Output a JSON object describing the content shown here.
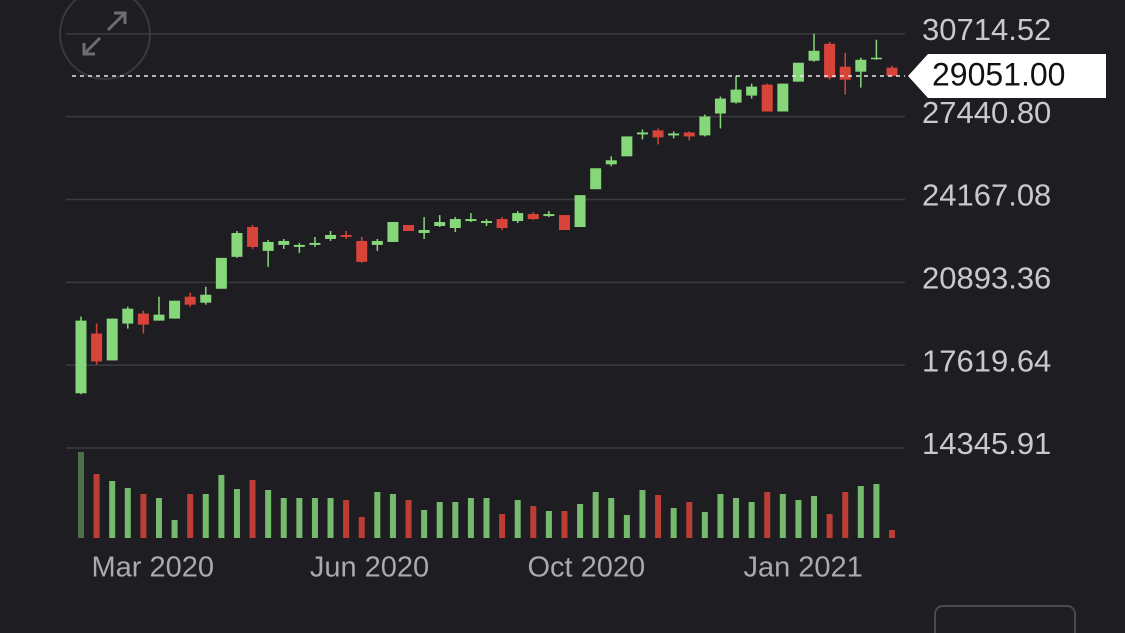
{
  "chart_data": {
    "type": "candlestick",
    "ylim": [
      14345.91,
      32052.4
    ],
    "yticks": [
      14345.91,
      17619.64,
      20893.36,
      24167.08,
      {
        "value": 27440.8,
        "label": "27440.80"
      },
      30714.52
    ],
    "grid": true,
    "last_price": {
      "value": 29051,
      "label": "29051.00"
    },
    "xlim": [
      -0.5,
      52.5
    ],
    "xticks": [
      {
        "value": 4.6,
        "label": "Mar 2020"
      },
      {
        "value": 18.5,
        "label": "Jun 2020"
      },
      {
        "value": 32.4,
        "label": "Oct 2020"
      },
      {
        "value": 46.3,
        "label": "Jan 2021"
      }
    ],
    "up_color": "#86d67a",
    "down_color": "#d8433a",
    "open": [
      16509,
      18870,
      17807,
      19263,
      19657,
      19381,
      19460,
      20326,
      20090,
      20640,
      21900,
      23080,
      22136,
      22372,
      22293,
      22372,
      22608,
      22765,
      22529,
      22372,
      22490,
      23159,
      22844,
      23120,
      23041,
      23316,
      23238,
      23395,
      23316,
      23592,
      23513,
      23552,
      23080,
      24575,
      25559,
      25874,
      26740,
      26897,
      26700,
      26818,
      26700,
      27566,
      27999,
      28274,
      28707,
      27645,
      28825,
      29652,
      30321,
      29416,
      29219,
      29730,
      29376
    ],
    "high": [
      19539,
      19263,
      19460,
      19932,
      19775,
      20326,
      20168,
      20483,
      20719,
      21860,
      22923,
      23159,
      22569,
      22608,
      22451,
      22687,
      22923,
      22923,
      22687,
      22608,
      23277,
      23159,
      23474,
      23552,
      23474,
      23631,
      23395,
      23474,
      23710,
      23670,
      23710,
      23552,
      24339,
      25402,
      25874,
      26661,
      26936,
      26976,
      26858,
      26858,
      27527,
      28235,
      29061,
      28747,
      28747,
      28747,
      29573,
      30714,
      30399,
      29966,
      29770,
      30478,
      29455
    ],
    "low": [
      16469,
      17650,
      17807,
      19066,
      18870,
      19381,
      19460,
      19932,
      20011,
      20640,
      21860,
      22214,
      21506,
      22214,
      22057,
      22293,
      22529,
      22608,
      21664,
      22136,
      22490,
      22923,
      22608,
      23080,
      22883,
      23277,
      23120,
      22962,
      23238,
      23356,
      23474,
      22962,
      23080,
      24575,
      25481,
      25874,
      26543,
      26346,
      26582,
      26504,
      26661,
      26976,
      27960,
      28156,
      27645,
      27645,
      28825,
      29612,
      28904,
      28314,
      28589,
      29691,
      29022
    ],
    "close": [
      19381,
      17768,
      19460,
      19853,
      19224,
      19617,
      20168,
      20011,
      20404,
      21860,
      22844,
      22293,
      22490,
      22529,
      22372,
      22451,
      22765,
      22687,
      21703,
      22529,
      23277,
      22923,
      22962,
      23277,
      23395,
      23395,
      23316,
      23041,
      23631,
      23395,
      23592,
      22962,
      24339,
      25402,
      25717,
      26661,
      26818,
      26622,
      26779,
      26661,
      27448,
      28156,
      28510,
      28629,
      27645,
      28747,
      29573,
      30045,
      28983,
      28904,
      29691,
      29770,
      29051
    ],
    "volume": [
      86,
      64,
      57,
      50,
      44,
      40,
      18,
      44,
      44,
      63,
      49,
      58,
      48,
      40,
      40,
      40,
      40,
      38,
      21,
      46,
      44,
      38,
      28,
      36,
      36,
      40,
      40,
      24,
      38,
      32,
      27,
      27,
      34,
      46,
      40,
      23,
      48,
      43,
      30,
      36,
      26,
      44,
      40,
      36,
      46,
      44,
      38,
      42,
      24,
      46,
      52,
      54,
      8
    ],
    "volume_lim": [
      0,
      90
    ]
  }
}
